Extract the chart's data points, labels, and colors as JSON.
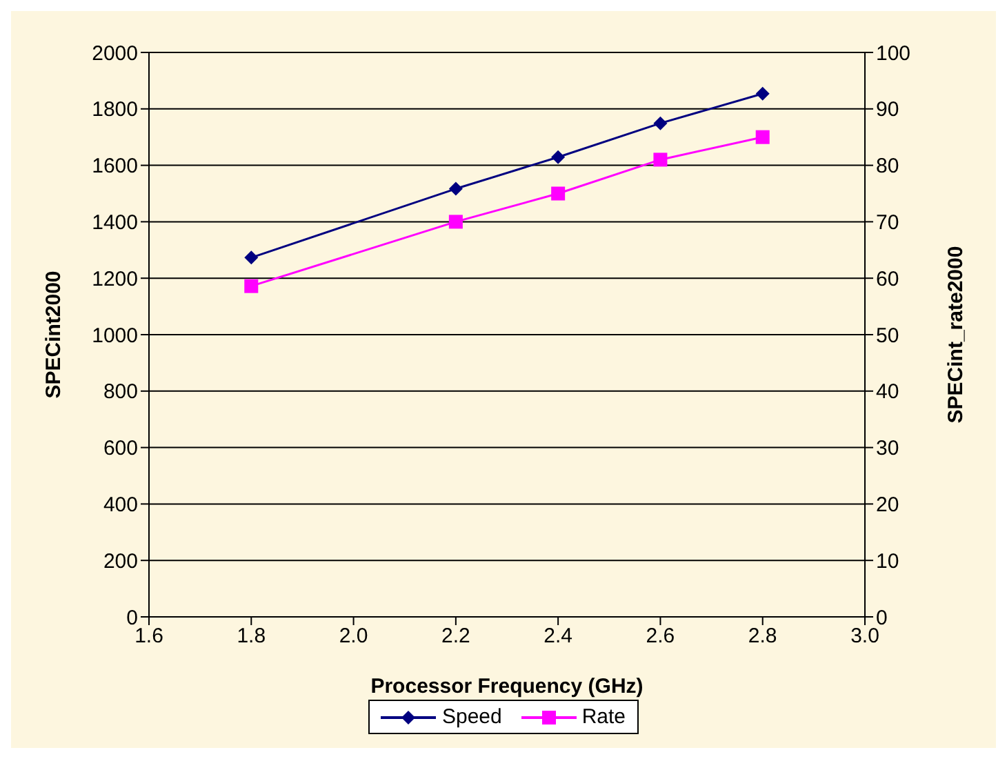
{
  "chart_data": {
    "type": "line",
    "xlabel": "Processor Frequency (GHz)",
    "ylabel": "SPECint2000",
    "y2label": "SPECint_rate2000",
    "x": [
      1.8,
      2.2,
      2.4,
      2.6,
      2.8
    ],
    "series": [
      {
        "name": "Speed",
        "color": "#000080",
        "values": [
          1273,
          1517,
          1629,
          1749,
          1854
        ],
        "marker": "diamond"
      },
      {
        "name": "Rate",
        "color": "#ff00ff",
        "values": [
          58.6,
          70,
          75,
          81,
          85
        ],
        "marker": "square",
        "axis": "y2"
      }
    ],
    "xlim": [
      1.6,
      3.0
    ],
    "xticks": [
      {
        "value": 1.6,
        "label": "1.6"
      },
      {
        "value": 1.8,
        "label": "1.8"
      },
      {
        "value": 2.0,
        "label": "2.0"
      },
      {
        "value": 2.2,
        "label": "2.2"
      },
      {
        "value": 2.4,
        "label": "2.4"
      },
      {
        "value": 2.6,
        "label": "2.6"
      },
      {
        "value": 2.8,
        "label": "2.8"
      },
      {
        "value": 3.0,
        "label": "3.0"
      }
    ],
    "ylim": [
      0,
      2000
    ],
    "yticks": [
      0,
      200,
      400,
      600,
      800,
      1000,
      1200,
      1400,
      1600,
      1800,
      2000
    ],
    "y2lim": [
      0,
      100
    ],
    "y2ticks": [
      0,
      10,
      20,
      30,
      40,
      50,
      60,
      70,
      80,
      90,
      100
    ],
    "grid": "y",
    "legend": "bottom",
    "line_style": "solid"
  }
}
